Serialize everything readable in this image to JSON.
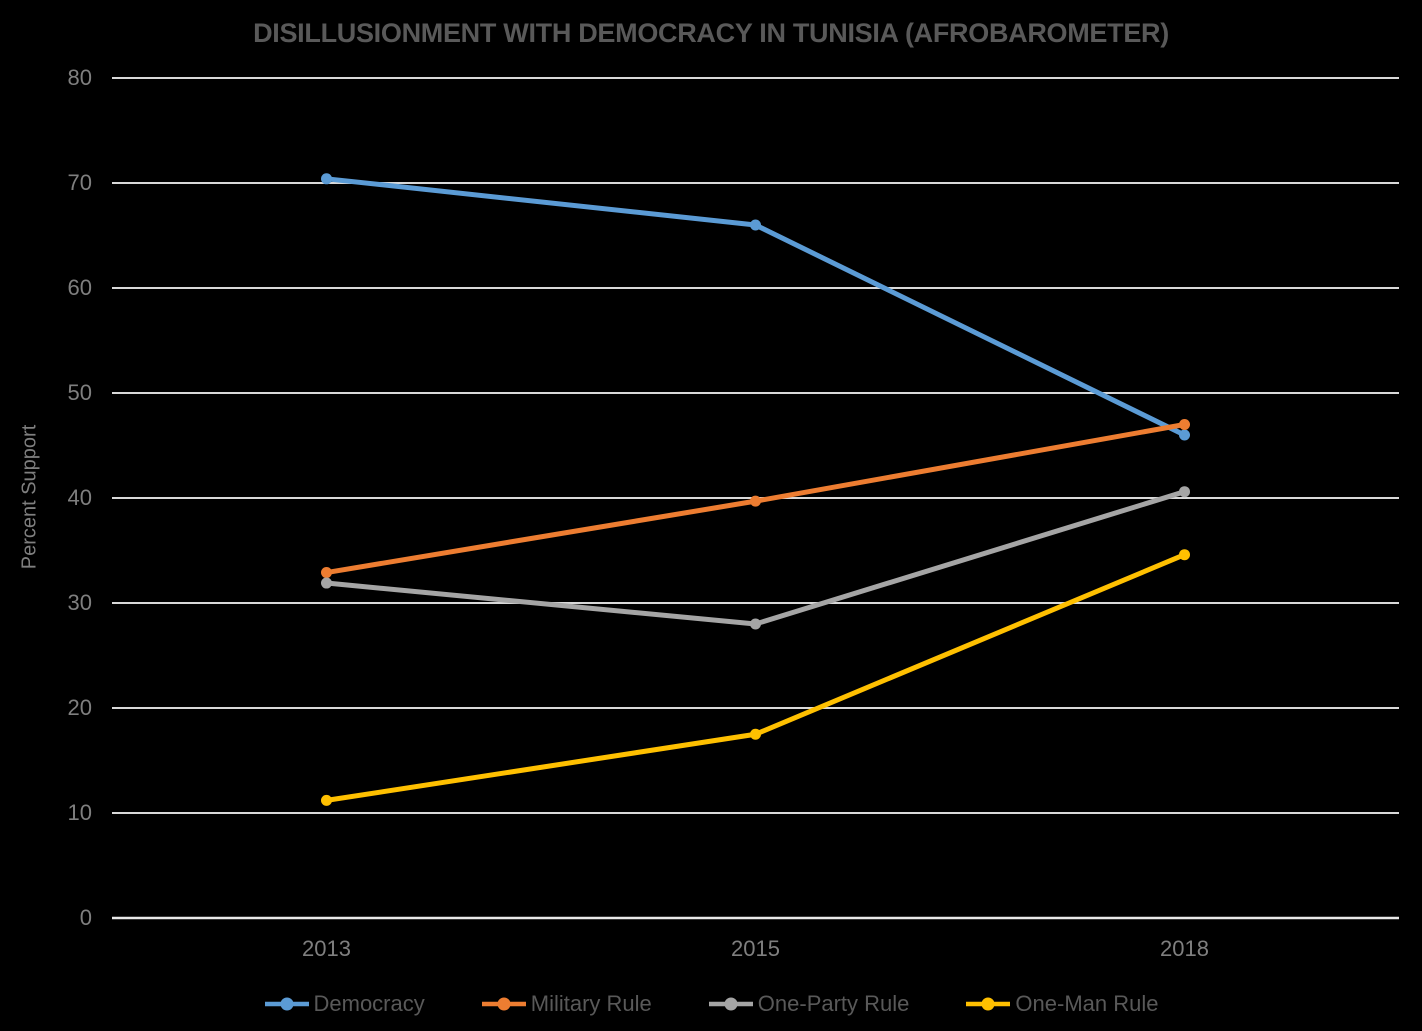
{
  "chart_data": {
    "type": "line",
    "title": "DISILLUSIONMENT WITH DEMOCRACY IN TUNISIA (AFROBAROMETER)",
    "ylabel": "Percent Support",
    "xlabel": "",
    "categories": [
      "2013",
      "2015",
      "2018"
    ],
    "series": [
      {
        "name": "Democracy",
        "color": "#5B9BD5",
        "values": [
          70.4,
          66.0,
          46.0
        ]
      },
      {
        "name": "Military Rule",
        "color": "#ED7D31",
        "values": [
          32.9,
          39.7,
          47.0
        ]
      },
      {
        "name": "One-Party Rule",
        "color": "#A5A5A5",
        "values": [
          31.9,
          28.0,
          40.6
        ]
      },
      {
        "name": "One-Man Rule",
        "color": "#FFC000",
        "values": [
          11.2,
          17.5,
          34.6
        ]
      }
    ],
    "ylim": [
      0,
      80
    ],
    "ytick_step": 10,
    "grid": true,
    "legend_position": "bottom",
    "marker": "circle",
    "colors": {
      "background": "#000000",
      "title": "#595959",
      "tick_labels": "#7F7F7F",
      "axis_label": "#7F7F7F",
      "legend_text": "#595959",
      "gridline": "#D9D9D9",
      "axis_line": "#E8E8E8"
    }
  }
}
